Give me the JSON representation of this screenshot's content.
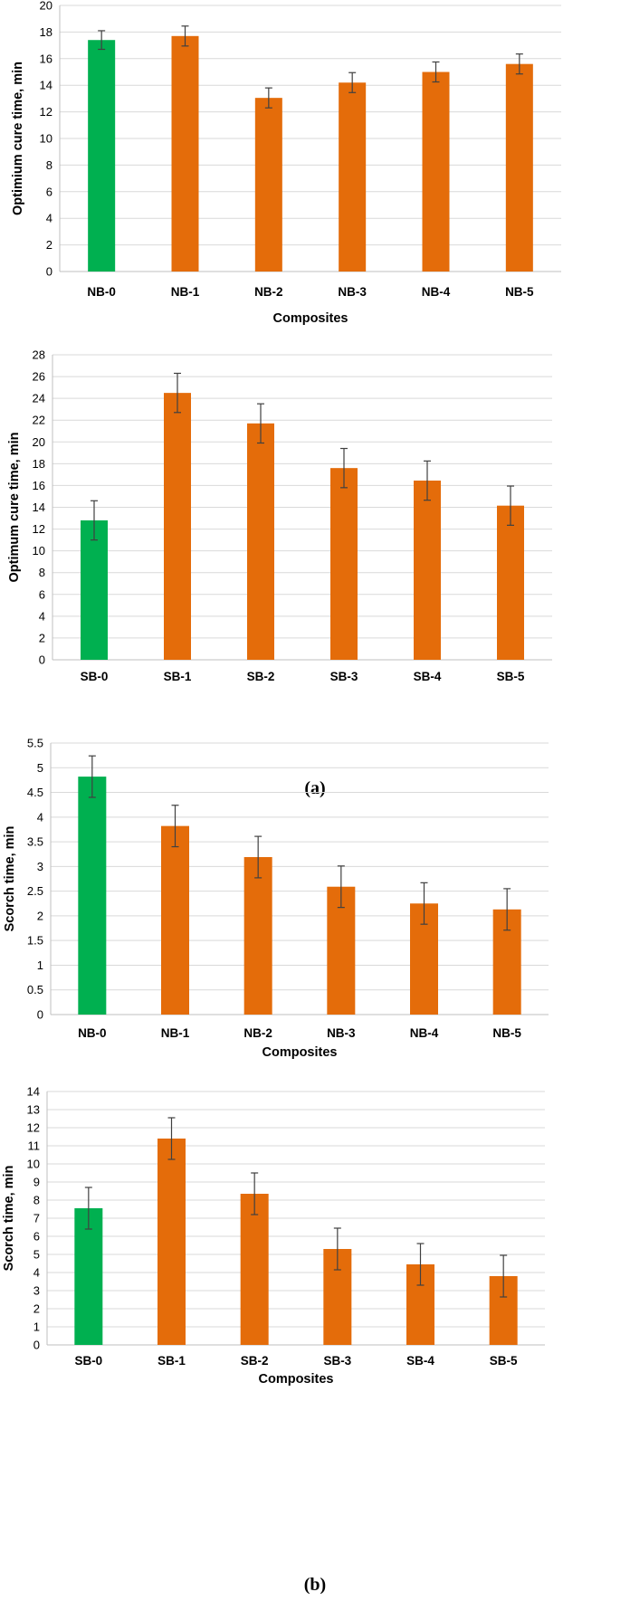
{
  "colors": {
    "control": "#00b050",
    "filled": "#e46c0a",
    "grid": "#d9d9d9",
    "error_bar": "#404040"
  },
  "captions": {
    "a": "(a)",
    "b": "(b)"
  },
  "chart_data": [
    {
      "type": "bar",
      "categories": [
        "NB-0",
        "NB-1",
        "NB-2",
        "NB-3",
        "NB-4",
        "NB-5"
      ],
      "values": [
        17.4,
        17.7,
        13.05,
        14.2,
        15.0,
        15.6
      ],
      "errors": [
        0.7,
        0.75,
        0.75,
        0.75,
        0.75,
        0.75
      ],
      "xlabel": "Composites",
      "ylabel": "Optimium cure time, min",
      "ylim": [
        0,
        20
      ],
      "ytick_step": 2,
      "yticks": [
        "0",
        "2",
        "4",
        "6",
        "8",
        "10",
        "12",
        "14",
        "16",
        "18",
        "20"
      ],
      "grid": true,
      "bar_colors": [
        "control",
        "filled",
        "filled",
        "filled",
        "filled",
        "filled"
      ]
    },
    {
      "type": "bar",
      "categories": [
        "SB-0",
        "SB-1",
        "SB-2",
        "SB-3",
        "SB-4",
        "SB-5"
      ],
      "values": [
        12.8,
        24.5,
        21.7,
        17.6,
        16.45,
        14.15
      ],
      "errors": [
        1.8,
        1.8,
        1.8,
        1.8,
        1.8,
        1.8
      ],
      "xlabel": "",
      "ylabel": "Optimum cure time, min",
      "ylim": [
        0,
        28
      ],
      "ytick_step": 2,
      "yticks": [
        "0",
        "2",
        "4",
        "6",
        "8",
        "10",
        "12",
        "14",
        "16",
        "18",
        "20",
        "22",
        "24",
        "26",
        "28"
      ],
      "grid": true,
      "bar_colors": [
        "control",
        "filled",
        "filled",
        "filled",
        "filled",
        "filled"
      ]
    },
    {
      "type": "bar",
      "categories": [
        "NB-0",
        "NB-1",
        "NB-2",
        "NB-3",
        "NB-4",
        "NB-5"
      ],
      "values": [
        4.82,
        3.82,
        3.19,
        2.59,
        2.25,
        2.13
      ],
      "errors": [
        0.42,
        0.42,
        0.42,
        0.42,
        0.42,
        0.42
      ],
      "xlabel": "Composites",
      "ylabel": "Scorch time, min",
      "ylim": [
        0,
        5.5
      ],
      "ytick_step": 0.5,
      "yticks": [
        "0",
        "0.5",
        "1",
        "1.5",
        "2",
        "2.5",
        "3",
        "3.5",
        "4",
        "4.5",
        "5",
        "5.5"
      ],
      "grid": true,
      "bar_colors": [
        "control",
        "filled",
        "filled",
        "filled",
        "filled",
        "filled"
      ]
    },
    {
      "type": "bar",
      "categories": [
        "SB-0",
        "SB-1",
        "SB-2",
        "SB-3",
        "SB-4",
        "SB-5"
      ],
      "values": [
        7.55,
        11.4,
        8.35,
        5.3,
        4.45,
        3.8
      ],
      "errors": [
        1.15,
        1.15,
        1.15,
        1.15,
        1.15,
        1.15
      ],
      "xlabel": "Composites",
      "ylabel": "Scorch time, min",
      "ylim": [
        0,
        14
      ],
      "ytick_step": 1,
      "yticks": [
        "0",
        "1",
        "2",
        "3",
        "4",
        "5",
        "6",
        "7",
        "8",
        "9",
        "10",
        "11",
        "12",
        "13",
        "14"
      ],
      "grid": true,
      "bar_colors": [
        "control",
        "filled",
        "filled",
        "filled",
        "filled",
        "filled"
      ]
    }
  ]
}
